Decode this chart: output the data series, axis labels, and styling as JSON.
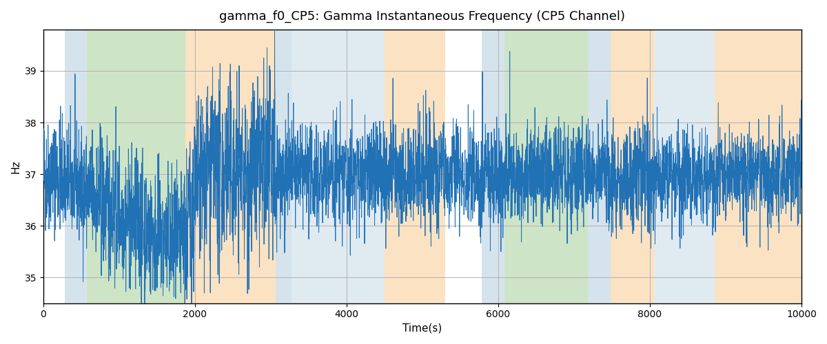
{
  "title": "gamma_f0_CP5: Gamma Instantaneous Frequency (CP5 Channel)",
  "xlabel": "Time(s)",
  "ylabel": "Hz",
  "xlim": [
    0,
    10000
  ],
  "ylim": [
    34.5,
    39.8
  ],
  "yticks": [
    35,
    36,
    37,
    38,
    39
  ],
  "line_color": "#2171b5",
  "line_width": 0.7,
  "background_color": "#ffffff",
  "grid_color": "#b0b0b0",
  "seed": 42,
  "n_points": 5000,
  "mean_freq": 37.0,
  "colored_regions": [
    {
      "xmin": 280,
      "xmax": 570,
      "color": "#b3ccdd",
      "alpha": 0.55
    },
    {
      "xmin": 570,
      "xmax": 1870,
      "color": "#9ecb8e",
      "alpha": 0.5
    },
    {
      "xmin": 1870,
      "xmax": 3060,
      "color": "#f9d09a",
      "alpha": 0.6
    },
    {
      "xmin": 3060,
      "xmax": 3270,
      "color": "#b3ccdd",
      "alpha": 0.55
    },
    {
      "xmin": 3270,
      "xmax": 4500,
      "color": "#b3ccdd",
      "alpha": 0.4
    },
    {
      "xmin": 4500,
      "xmax": 5300,
      "color": "#f9d09a",
      "alpha": 0.6
    },
    {
      "xmin": 5780,
      "xmax": 6080,
      "color": "#b3ccdd",
      "alpha": 0.55
    },
    {
      "xmin": 6080,
      "xmax": 7180,
      "color": "#9ecb8e",
      "alpha": 0.5
    },
    {
      "xmin": 7180,
      "xmax": 7480,
      "color": "#b3ccdd",
      "alpha": 0.55
    },
    {
      "xmin": 7480,
      "xmax": 8050,
      "color": "#f9d09a",
      "alpha": 0.6
    },
    {
      "xmin": 8050,
      "xmax": 8850,
      "color": "#b3ccdd",
      "alpha": 0.4
    },
    {
      "xmin": 8850,
      "xmax": 10000,
      "color": "#f9d09a",
      "alpha": 0.6
    }
  ]
}
